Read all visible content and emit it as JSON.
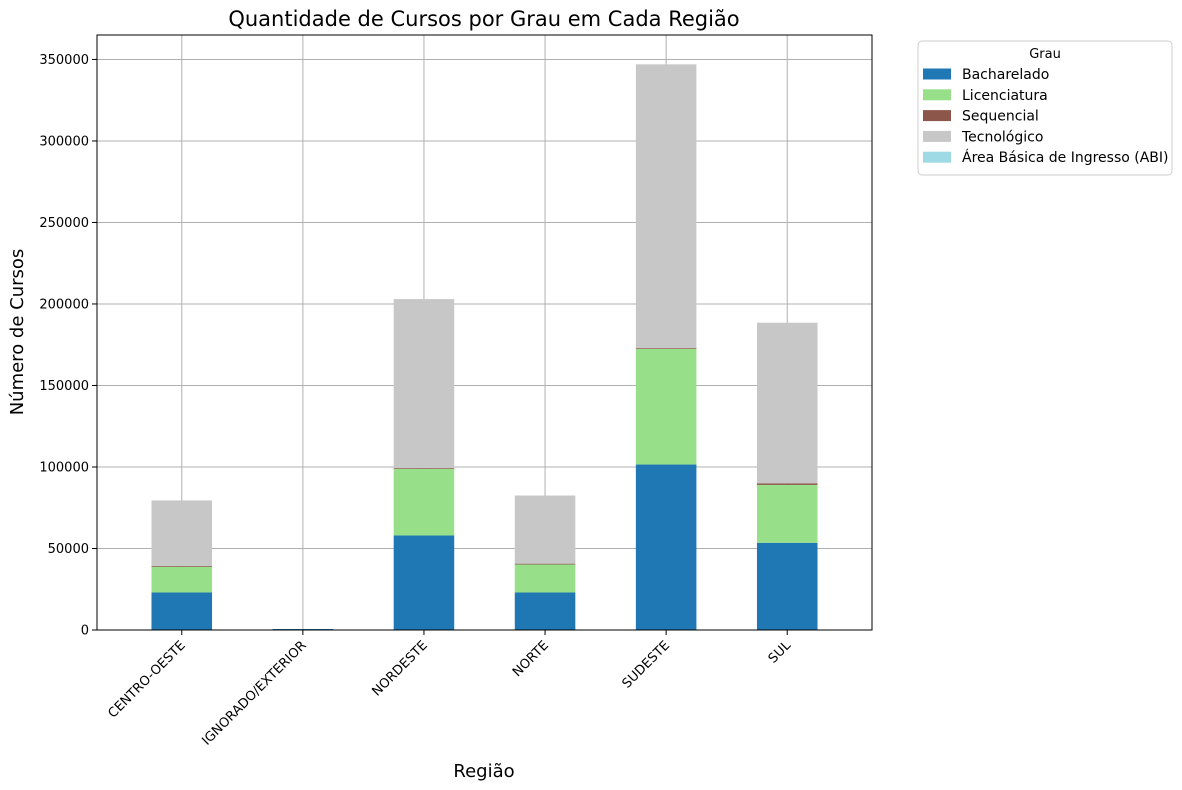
{
  "chart_data": {
    "type": "bar",
    "stacked": true,
    "title": "Quantidade de Cursos por Grau em Cada Região",
    "xlabel": "Região",
    "ylabel": "Número de Cursos",
    "ylim": [
      0,
      365000
    ],
    "yticks": [
      0,
      50000,
      100000,
      150000,
      200000,
      250000,
      300000,
      350000
    ],
    "grid": true,
    "categories": [
      "CENTRO-OESTE",
      "IGNORADO/EXTERIOR",
      "NORDESTE",
      "NORTE",
      "SUDESTE",
      "SUL"
    ],
    "series": [
      {
        "name": "Bacharelado",
        "color": "#1f77b4",
        "values": [
          23000,
          600,
          58000,
          23000,
          101500,
          53500
        ]
      },
      {
        "name": "Licenciatura",
        "color": "#98df8a",
        "values": [
          16000,
          0,
          41000,
          17500,
          71000,
          35500
        ]
      },
      {
        "name": "Sequencial",
        "color": "#8c564b",
        "values": [
          200,
          0,
          300,
          200,
          400,
          1000
        ]
      },
      {
        "name": "Tecnológico",
        "color": "#c7c7c7",
        "values": [
          40300,
          0,
          103700,
          41800,
          174100,
          98500
        ]
      },
      {
        "name": "Área Básica de Ingresso (ABI)",
        "color": "#9edae5",
        "values": [
          0,
          0,
          0,
          0,
          0,
          0
        ]
      }
    ],
    "legend": {
      "title": "Grau",
      "position": "outside-top-right"
    }
  }
}
